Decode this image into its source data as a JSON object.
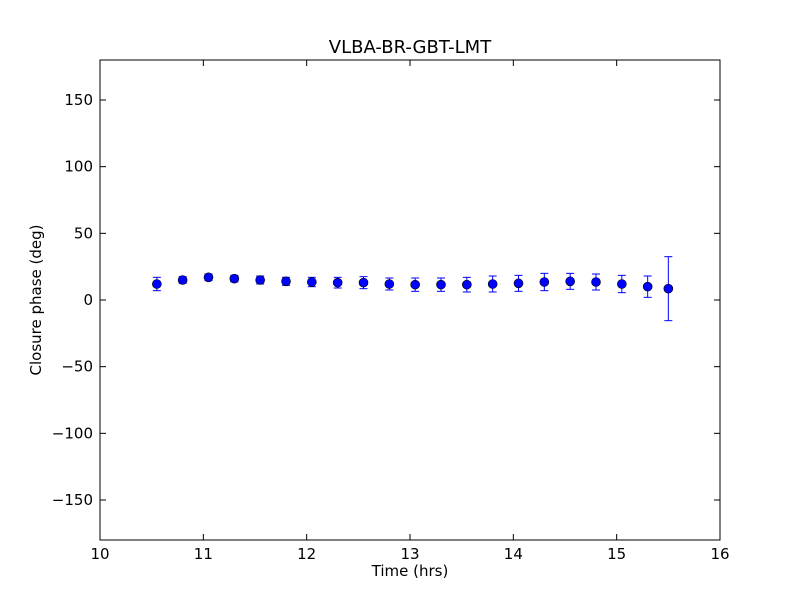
{
  "chart_data": {
    "type": "scatter",
    "title": "VLBA-BR-GBT-LMT",
    "xlabel": "Time (hrs)",
    "ylabel": "Closure phase (deg)",
    "xlim": [
      10,
      16
    ],
    "ylim": [
      -180,
      180
    ],
    "xticks": [
      10,
      11,
      12,
      13,
      14,
      15,
      16
    ],
    "xtick_labels": [
      "10",
      "11",
      "12",
      "13",
      "14",
      "15",
      "16"
    ],
    "yticks": [
      -150,
      -100,
      -50,
      0,
      50,
      100,
      150
    ],
    "ytick_labels": [
      "−150",
      "−100",
      "−50",
      "0",
      "50",
      "100",
      "150"
    ],
    "grid": false,
    "marker_color": "#0000ff",
    "series": [
      {
        "x": [
          10.55,
          10.8,
          11.05,
          11.3,
          11.55,
          11.8,
          12.05,
          12.3,
          12.55,
          12.8,
          13.05,
          13.3,
          13.55,
          13.8,
          14.05,
          14.3,
          14.55,
          14.8,
          15.05,
          15.3,
          15.5
        ],
        "y": [
          12,
          15,
          17,
          16,
          15,
          14,
          13.5,
          13,
          13,
          12,
          11.5,
          11.5,
          11.5,
          12,
          12.5,
          13.5,
          14,
          13.5,
          12,
          10,
          8.5
        ],
        "err": [
          5,
          2.5,
          2.5,
          2.5,
          3,
          3,
          3.5,
          4,
          4.5,
          4.5,
          5,
          5,
          5.5,
          6,
          6,
          6.5,
          6,
          6,
          6.5,
          8,
          24
        ]
      }
    ]
  }
}
